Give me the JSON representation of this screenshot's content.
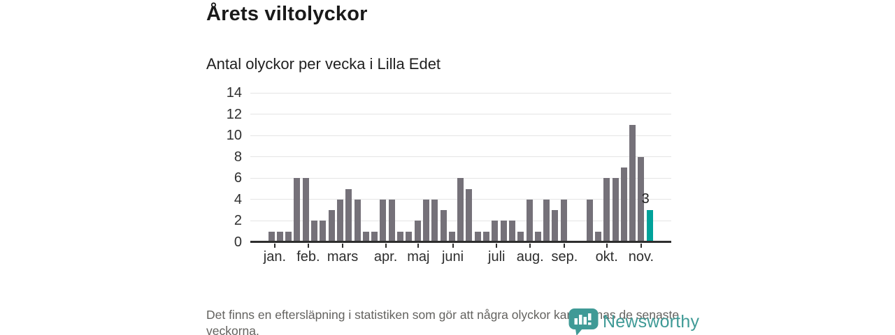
{
  "header": {
    "title": "Årets viltolyckor",
    "subtitle": "Antal olyckor per vecka i Lilla Edet"
  },
  "chart_data": {
    "type": "bar",
    "title": "Årets viltolyckor",
    "subtitle": "Antal olyckor per vecka i Lilla Edet",
    "xlabel": "",
    "ylabel": "Antal olyckor per vecka",
    "x_weeks": [
      1,
      2,
      3,
      4,
      5,
      6,
      7,
      8,
      9,
      10,
      11,
      12,
      13,
      14,
      15,
      16,
      17,
      18,
      19,
      20,
      21,
      22,
      23,
      24,
      25,
      26,
      27,
      28,
      29,
      30,
      31,
      32,
      33,
      34,
      35,
      36,
      37,
      38,
      39,
      40,
      41,
      42,
      43,
      44,
      45
    ],
    "values": [
      1,
      1,
      1,
      6,
      6,
      2,
      2,
      3,
      4,
      5,
      4,
      1,
      1,
      4,
      4,
      1,
      1,
      2,
      4,
      4,
      3,
      1,
      6,
      5,
      1,
      1,
      2,
      2,
      2,
      1,
      4,
      1,
      4,
      3,
      4,
      0,
      0,
      4,
      1,
      6,
      6,
      7,
      11,
      8,
      3
    ],
    "ylim": [
      0,
      14
    ],
    "yticks": [
      0,
      2,
      4,
      6,
      8,
      10,
      12,
      14
    ],
    "grid": true,
    "legend_position": "none",
    "month_ticks": [
      {
        "label": "jan.",
        "slot": 0.4
      },
      {
        "label": "feb.",
        "slot": 4.3
      },
      {
        "label": "mars",
        "slot": 8.3
      },
      {
        "label": "apr.",
        "slot": 13.3
      },
      {
        "label": "maj",
        "slot": 17.1
      },
      {
        "label": "juni",
        "slot": 21.1
      },
      {
        "label": "juli",
        "slot": 26.2
      },
      {
        "label": "aug.",
        "slot": 30.1
      },
      {
        "label": "sep.",
        "slot": 34.1
      },
      {
        "label": "okt.",
        "slot": 39.0
      },
      {
        "label": "nov.",
        "slot": 43.0
      }
    ],
    "highlight": {
      "index": 44,
      "value_label": "3"
    }
  },
  "footer": {
    "note": "Det finns en eftersläpning i statistiken som gör att några olyckor kan saknas de senaste veckorna.",
    "logo_text": "Newsworthy"
  },
  "colors": {
    "bar": "#757179",
    "accent": "#00a29a",
    "axis": "#2e2e2e",
    "grid": "#e4e4e4",
    "logo": "#3f9a96",
    "title_text": "#1a1a1a",
    "muted_text": "#63625f"
  }
}
